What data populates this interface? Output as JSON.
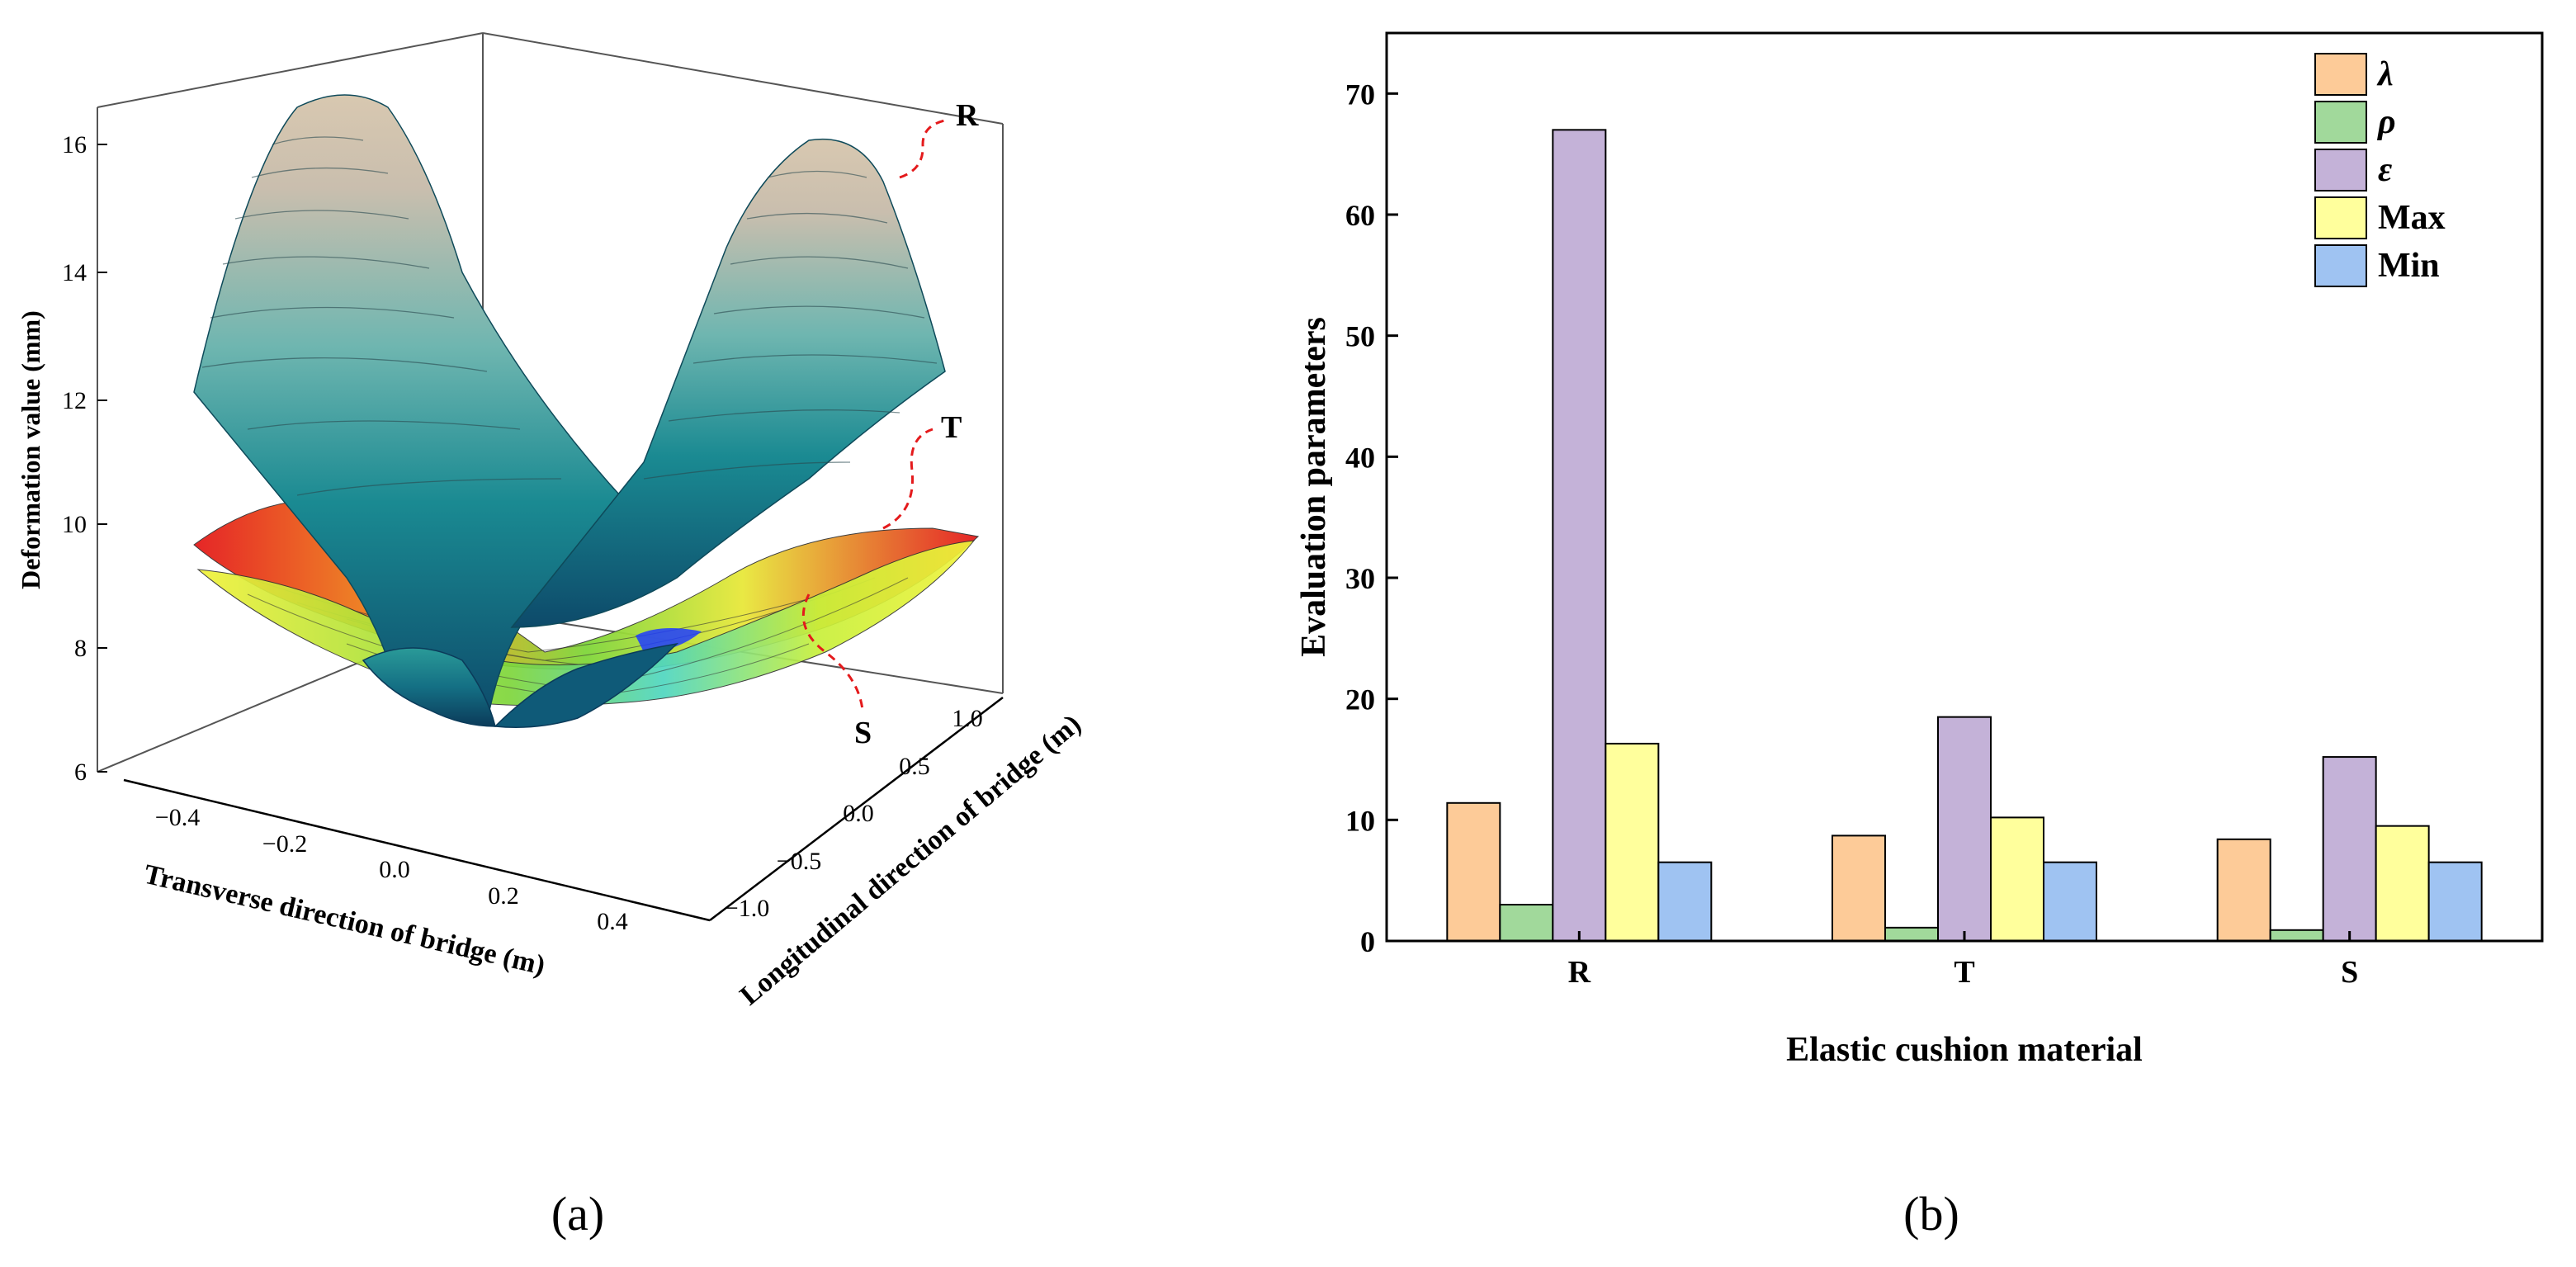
{
  "figure": {
    "panel_a_caption": "(a)",
    "panel_b_caption": "(b)"
  },
  "panel_a": {
    "type": "surface3d",
    "zlabel": "Deformation value (mm)",
    "xlabel": "Transverse direction of bridge (m)",
    "ylabel": "Longitudinal direction of bridge (m)",
    "zticks": [
      "6",
      "8",
      "10",
      "12",
      "14",
      "16"
    ],
    "xticks": [
      "−0.4",
      "−0.2",
      "0.0",
      "0.2",
      "0.4"
    ],
    "yticks": [
      "−1.0",
      "−0.5",
      "0.0",
      "0.5",
      "1.0"
    ],
    "surface_labels": [
      "R",
      "T",
      "S"
    ],
    "surfaces": [
      {
        "name": "R",
        "colormap": "teal-to-beige",
        "approx_range_mm": [
          6.5,
          16.5
        ]
      },
      {
        "name": "T",
        "colormap": "rainbow (blue-green-yellow-red)",
        "approx_range_mm": [
          7.5,
          10.0
        ]
      },
      {
        "name": "S",
        "colormap": "rainbow (blue-green-yellow-red)",
        "approx_range_mm": [
          7.5,
          9.7
        ]
      }
    ],
    "colors": {
      "teal": "#1a8a92",
      "beige": "#d8c8b0",
      "red": "#e41a1c",
      "green": "#7fd63a",
      "yellow": "#f2f23a",
      "blue": "#1e3cff",
      "leader": "#e41a1c"
    }
  },
  "chart_data": {
    "type": "bar",
    "title": "",
    "xlabel": "Elastic cushion material",
    "ylabel": "Evaluation parameters",
    "categories": [
      "R",
      "T",
      "S"
    ],
    "ylim": [
      0,
      75
    ],
    "yticks": [
      "0",
      "10",
      "20",
      "30",
      "40",
      "50",
      "60",
      "70"
    ],
    "legend_position": "top-right",
    "series": [
      {
        "name": "λ",
        "values": [
          11.4,
          8.7,
          8.4
        ],
        "color": "#fdcb98"
      },
      {
        "name": "ρ",
        "values": [
          3.0,
          1.1,
          0.9
        ],
        "color": "#a1d99b"
      },
      {
        "name": "ε",
        "values": [
          67.0,
          18.5,
          15.2
        ],
        "color": "#c4b2d8"
      },
      {
        "name": "Max",
        "values": [
          16.3,
          10.2,
          9.5
        ],
        "color": "#ffff9c"
      },
      {
        "name": "Min",
        "values": [
          6.5,
          6.5,
          6.5
        ],
        "color": "#9fc3f2"
      }
    ]
  }
}
